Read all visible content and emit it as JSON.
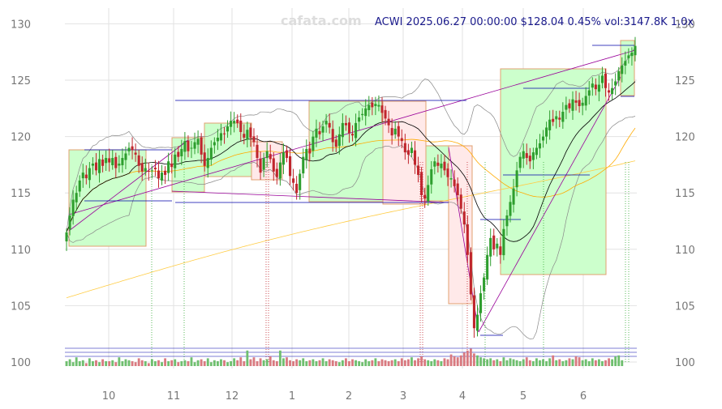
{
  "chart_data": {
    "type": "candlestick",
    "watermark": "cafata.com",
    "header": "ACWI 2025.06.27 00:00:00 $128.04 0.45% vol:3147.8K 1.0x",
    "ticker": "ACWI",
    "last_close": 128.04,
    "change_pct": 0.45,
    "volume_label": "vol:3147.8K",
    "ylim": [
      99.5,
      131.5
    ],
    "y_ticks": [
      100,
      105,
      110,
      115,
      120,
      125,
      130
    ],
    "x_ticks": [
      "10",
      "11",
      "12",
      "1",
      "2",
      "3",
      "4",
      "5",
      "6"
    ],
    "grid": true,
    "colors": {
      "up": "#2e9e2e",
      "down": "#c0262d",
      "box_up_fill": "#ccffcc",
      "box_down_fill": "#ffe9e9",
      "box_border": "#e0a070",
      "ma_short": "#000000",
      "ma_mid": "#ffaa00",
      "ma_long": "#ffcc44",
      "bollinger": "#888888",
      "trend": "#990099",
      "level": "#0000aa",
      "signal": "#33aa33"
    },
    "closes": [
      111.5,
      113.0,
      114.4,
      115.0,
      116.1,
      116.8,
      116.3,
      117.2,
      117.6,
      117.0,
      118.0,
      117.4,
      118.1,
      117.7,
      118.1,
      117.2,
      117.6,
      118.1,
      118.5,
      119.0,
      118.8,
      118.4,
      117.4,
      116.9,
      117.2,
      116.9,
      117.0,
      117.1,
      116.3,
      116.8,
      116.6,
      117.8,
      117.3,
      118.4,
      118.2,
      118.9,
      119.6,
      118.7,
      119.0,
      119.5,
      119.8,
      118.4,
      117.4,
      118.1,
      119.0,
      119.5,
      119.9,
      120.3,
      120.2,
      120.9,
      121.4,
      121.4,
      121.2,
      120.4,
      119.9,
      120.6,
      119.9,
      119.5,
      118.1,
      116.8,
      118.1,
      118.7,
      118.0,
      116.9,
      116.4,
      117.7,
      118.6,
      118.1,
      116.5,
      115.9,
      115.0,
      116.7,
      118.2,
      118.9,
      118.5,
      120.0,
      120.7,
      120.2,
      120.9,
      121.4,
      120.8,
      119.5,
      119.1,
      120.2,
      121.2,
      121.0,
      120.3,
      120.1,
      121.2,
      121.7,
      122.0,
      122.5,
      122.8,
      122.6,
      122.9,
      122.8,
      122.1,
      121.6,
      121.0,
      120.1,
      120.7,
      120.0,
      119.6,
      118.6,
      118.4,
      119.0,
      117.5,
      116.6,
      114.8,
      114.5,
      115.7,
      117.1,
      117.8,
      117.4,
      117.6,
      117.0,
      116.4,
      116.3,
      115.6,
      114.8,
      113.6,
      112.2,
      109.5,
      106.0,
      103.0,
      104.2,
      106.1,
      107.5,
      109.5,
      111.0,
      110.0,
      110.5,
      109.5,
      111.8,
      113.0,
      114.2,
      115.4,
      117.0,
      118.2,
      118.7,
      118.1,
      117.8,
      118.6,
      119.0,
      119.4,
      120.0,
      120.8,
      121.5,
      121.3,
      121.8,
      121.5,
      122.2,
      122.8,
      122.5,
      123.3,
      123.0,
      122.7,
      123.0,
      123.6,
      124.1,
      124.7,
      124.2,
      124.6,
      125.4,
      124.3,
      123.9,
      124.3,
      124.9,
      125.8,
      126.3,
      126.7,
      127.2,
      127.45,
      128.04
    ],
    "volume_profile": [
      0.5,
      0.7,
      0.4,
      0.9,
      0.5,
      0.6,
      0.3,
      0.8,
      0.5,
      0.6,
      0.4,
      0.7,
      0.5,
      0.5,
      0.6,
      0.4,
      0.9,
      0.5,
      0.7,
      0.6,
      0.5,
      0.4,
      0.8,
      0.6,
      0.5,
      0.3,
      0.7,
      0.5,
      0.6,
      0.4,
      0.8,
      0.5,
      0.6,
      0.7,
      0.4,
      0.5,
      0.6,
      0.5,
      0.9,
      0.4,
      0.6,
      0.7,
      0.5,
      0.8,
      0.4,
      0.6,
      0.5,
      0.7,
      0.6,
      0.4,
      0.5,
      0.8,
      0.6,
      0.9,
      0.5,
      1.6,
      0.7,
      0.9,
      0.5,
      0.8,
      0.6,
      0.7,
      1.0,
      0.6,
      0.5,
      1.6,
      0.8,
      0.9,
      0.6,
      0.5,
      0.7,
      0.6,
      0.8,
      0.5,
      0.6,
      0.7,
      0.5,
      0.6,
      0.8,
      0.5,
      0.7,
      0.6,
      0.5,
      0.4,
      0.6,
      0.8,
      0.5,
      0.7,
      0.6,
      0.5,
      0.4,
      0.7,
      0.5,
      0.6,
      0.8,
      0.5,
      0.7,
      0.6,
      0.5,
      0.6,
      0.7,
      0.5,
      0.8,
      0.6,
      0.7,
      0.9,
      0.6,
      0.8,
      1.0,
      0.7,
      0.6,
      0.5,
      0.7,
      0.6,
      0.5,
      0.8,
      0.7,
      1.2,
      1.0,
      0.9,
      1.1,
      1.4,
      1.6,
      1.8,
      1.3,
      1.1,
      0.9,
      0.8,
      0.7,
      0.8,
      0.6,
      0.7,
      0.5,
      0.9,
      0.6,
      0.8,
      0.7,
      0.6,
      0.5,
      0.7,
      0.9,
      0.6,
      0.5,
      0.8,
      0.6,
      0.7,
      0.5,
      0.8,
      1.1,
      0.6,
      0.7,
      0.5,
      0.6,
      0.8,
      0.7,
      1.0,
      0.9,
      0.6,
      0.7,
      0.5,
      0.8,
      0.6,
      0.7,
      0.5,
      0.6,
      0.8,
      0.7,
      1.0,
      1.1,
      0.6
    ]
  }
}
